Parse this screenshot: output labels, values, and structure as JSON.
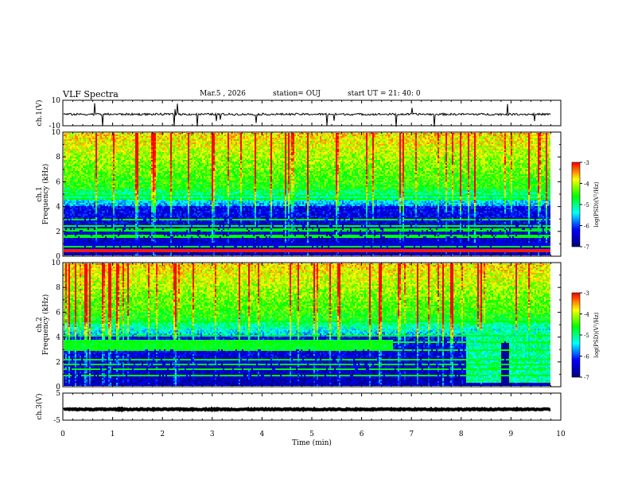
{
  "header": {
    "title": "VLF Spectra",
    "date": "Mar.5 , 2026",
    "station": "station= OUJ",
    "start": "start UT = 21: 40: 0"
  },
  "chart_data": [
    {
      "type": "line",
      "name": "ch1-waveform",
      "ylabel": "ch.1(V)",
      "ylim": [
        -10,
        10
      ],
      "yticks": [
        "10",
        "-10"
      ],
      "xlim": [
        0,
        10
      ],
      "level": -1,
      "trace_color": "#000000"
    },
    {
      "type": "heatmap",
      "name": "ch1-spectrogram",
      "ylabel": [
        "ch.1",
        "Frequency (kHz)"
      ],
      "ylim": [
        0,
        10
      ],
      "yticks": [
        "0",
        "2",
        "4",
        "6",
        "8",
        "10"
      ],
      "xlim": [
        0,
        10
      ],
      "data_end_min": 9.8,
      "colorbar": {
        "label": "log(PSD)(V²/Hz)",
        "range": [
          -7,
          -3
        ],
        "ticks": [
          "-3",
          "-4",
          "-5",
          "-6",
          "-7"
        ]
      },
      "colormap": [
        "#000080",
        "#0000ff",
        "#00ffff",
        "#00ff00",
        "#ffff00",
        "#ff0000"
      ]
    },
    {
      "type": "heatmap",
      "name": "ch2-spectrogram",
      "ylabel": [
        "ch.2",
        "Frequency (kHz)"
      ],
      "ylim": [
        0,
        10
      ],
      "yticks": [
        "0",
        "2",
        "4",
        "6",
        "8",
        "10"
      ],
      "xlim": [
        0,
        10
      ],
      "data_end_min": 9.8,
      "colorbar": {
        "label": "log(PSD)(V²/Hz)",
        "range": [
          -7,
          -3
        ],
        "ticks": [
          "-3",
          "-4",
          "-5",
          "-6",
          "-7"
        ]
      },
      "colormap": [
        "#000080",
        "#0000ff",
        "#00ffff",
        "#00ff00",
        "#ffff00",
        "#ff0000"
      ]
    },
    {
      "type": "line",
      "name": "ch3-waveform",
      "ylabel": "ch.3(V)",
      "ylim": [
        -5,
        5
      ],
      "yticks": [
        "5",
        "-5"
      ],
      "xlim": [
        0,
        10
      ],
      "level": -1,
      "trace_color": "#000000",
      "xlabel": "Time (min)",
      "xticks": [
        "0",
        "1",
        "2",
        "3",
        "4",
        "5",
        "6",
        "7",
        "8",
        "9",
        "10"
      ]
    }
  ]
}
